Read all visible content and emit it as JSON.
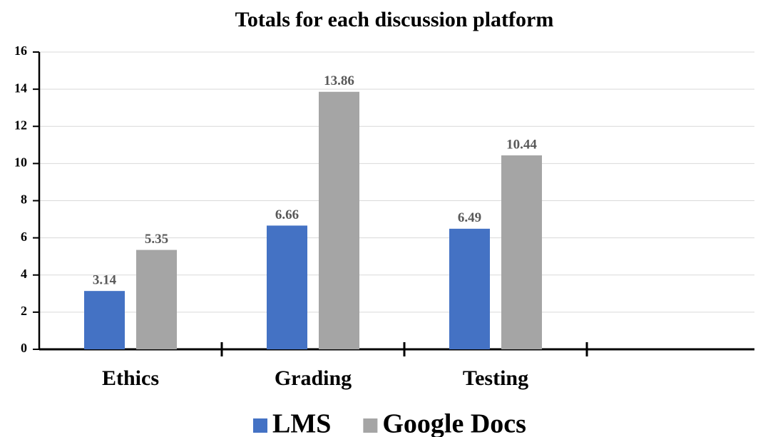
{
  "chart_data": {
    "type": "bar",
    "title": "Totals for each discussion platform",
    "categories": [
      "Ethics",
      "Grading",
      "Testing",
      null
    ],
    "series": [
      {
        "name": "LMS",
        "color": "#4472c4",
        "values": [
          3.14,
          6.66,
          6.49,
          null
        ]
      },
      {
        "name": "Google Docs",
        "color": "#a5a5a5",
        "values": [
          5.35,
          13.86,
          10.44,
          null
        ]
      }
    ],
    "ylim": [
      0,
      16
    ],
    "yticks": [
      0,
      2,
      4,
      6,
      8,
      10,
      12,
      14,
      16
    ],
    "grid": true,
    "legend": "bottom"
  }
}
